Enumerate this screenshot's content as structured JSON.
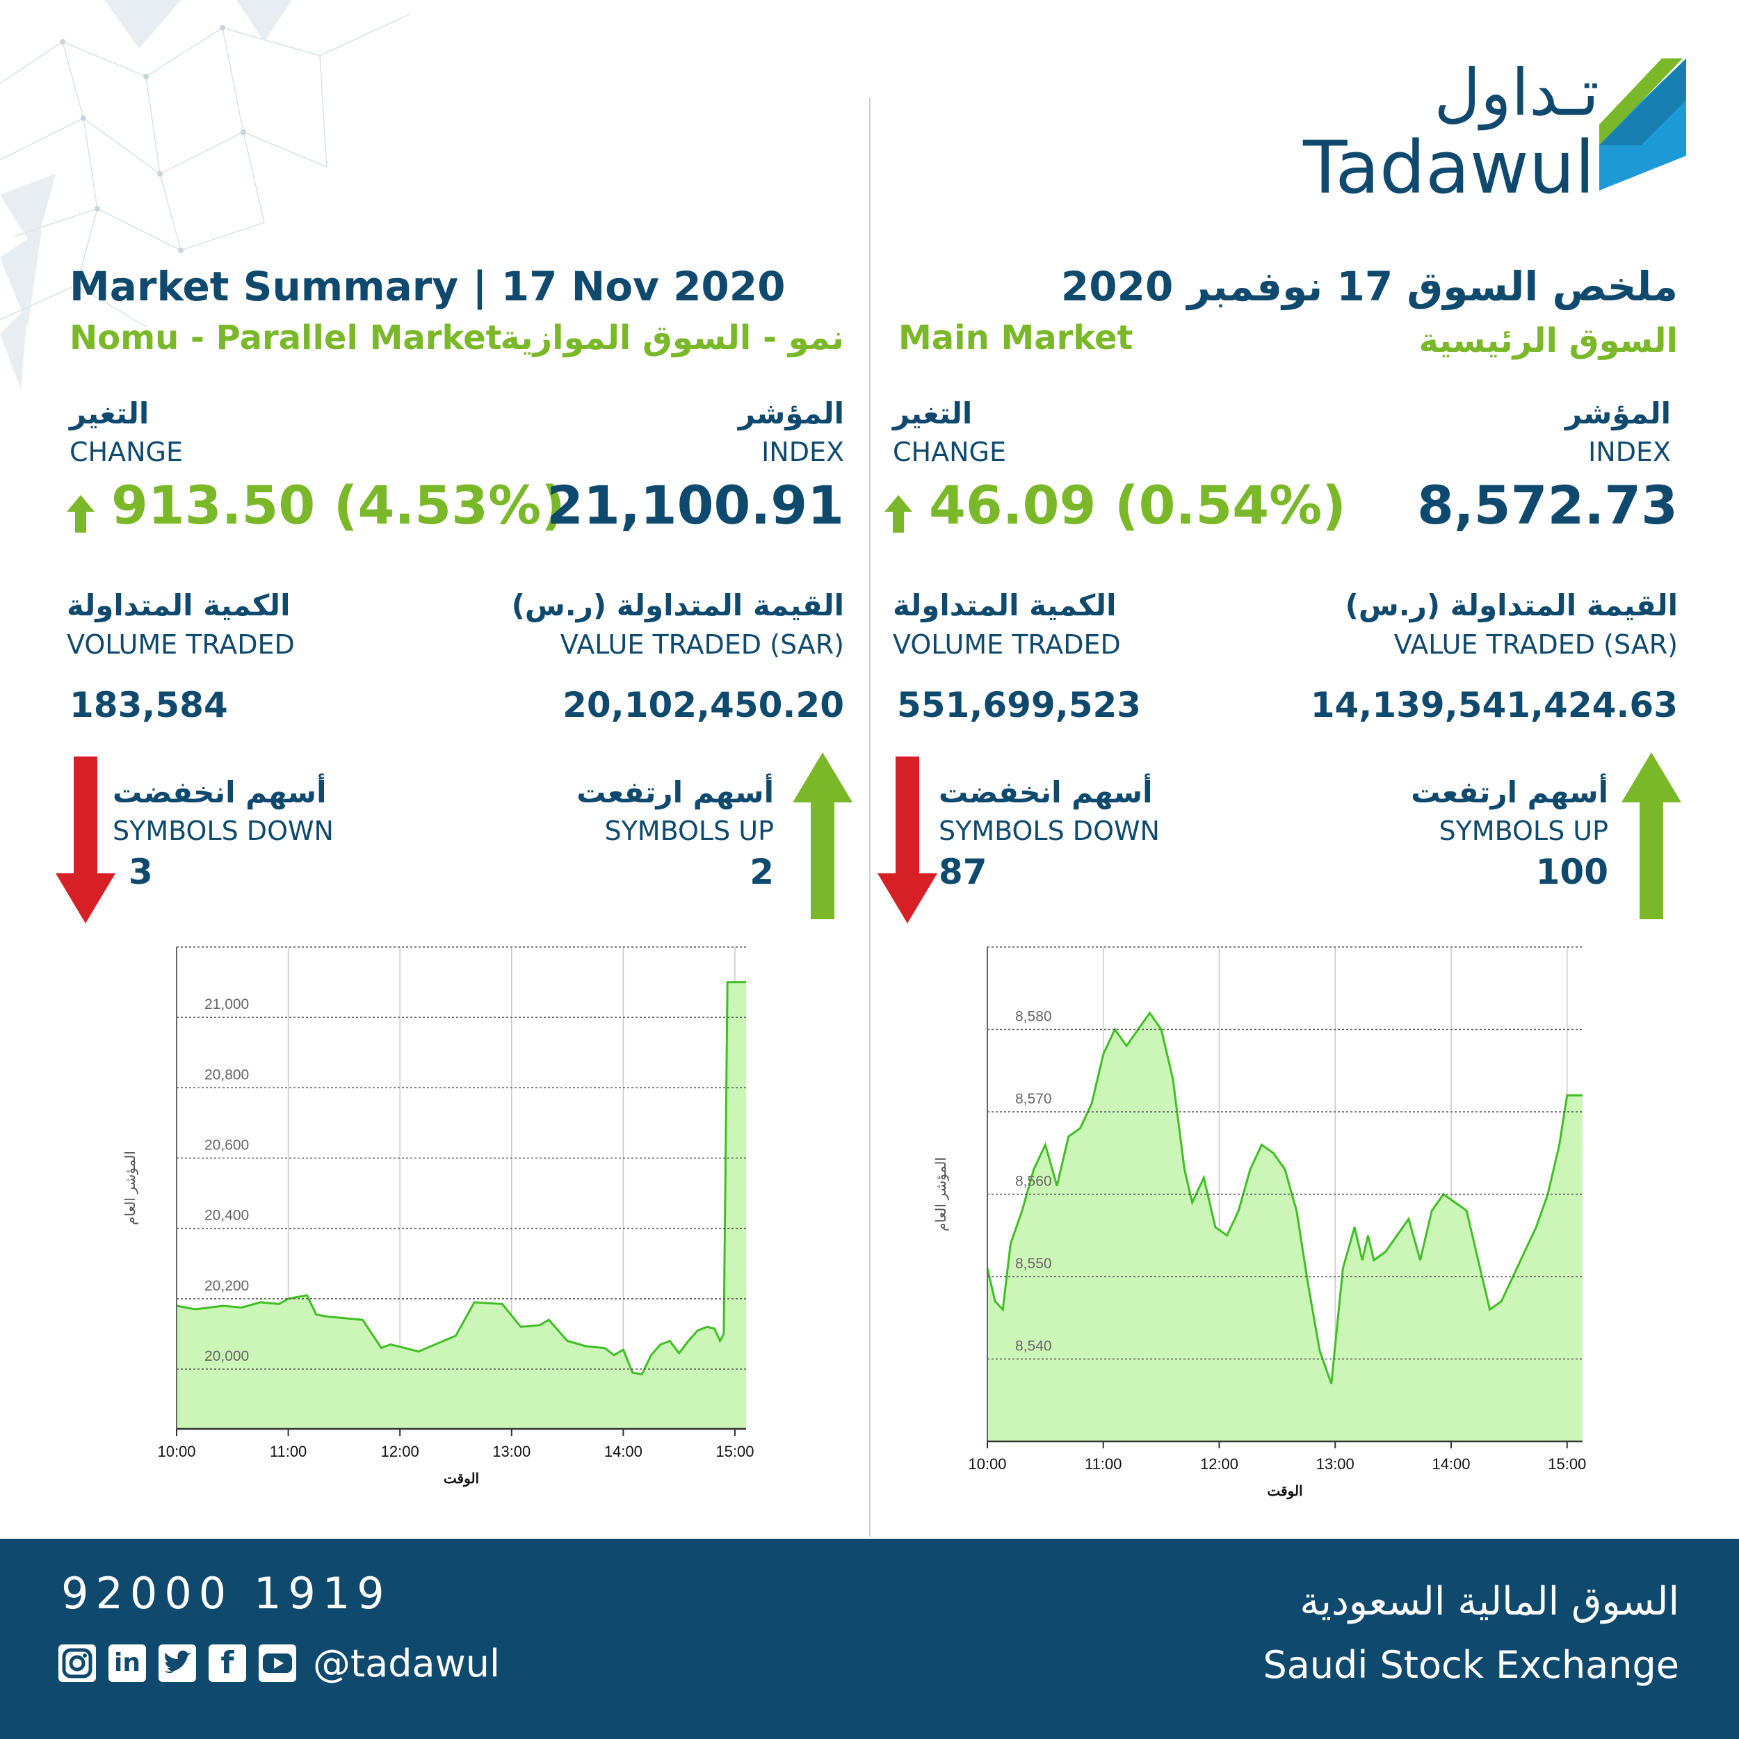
{
  "brand": {
    "logo_ar": "تـداول",
    "logo_en": "Tadawul"
  },
  "header": {
    "title_en": "Market Summary | 17 Nov 2020",
    "title_ar": "ملخص السوق 17 نوفمبر 2020"
  },
  "nomu": {
    "name_en": "Nomu - Parallel Market",
    "name_ar": "نمو - السوق الموازية",
    "index_label_ar": "المؤشر",
    "index_label_en": "INDEX",
    "index_value": "21,100.91",
    "change_label_ar": "التغير",
    "change_label_en": "CHANGE",
    "change_value": "913.50 (4.53%)",
    "value_label_ar": "القيمة المتداولة (ر.س)",
    "value_label_en": "VALUE TRADED (SAR)",
    "value_traded": "20,102,450.20",
    "volume_label_ar": "الكمية المتداولة",
    "volume_label_en": "VOLUME TRADED",
    "volume_traded": "183,584",
    "up_label_ar": "أسهم ارتفعت",
    "up_label_en": "SYMBOLS UP",
    "symbols_up": "2",
    "down_label_ar": "أسهم انخفضت",
    "down_label_en": "SYMBOLS DOWN",
    "symbols_down": "3"
  },
  "main": {
    "name_en": "Main Market",
    "name_ar": "السوق الرئيسية",
    "index_label_ar": "المؤشر",
    "index_label_en": "INDEX",
    "index_value": "8,572.73",
    "change_label_ar": "التغير",
    "change_label_en": "CHANGE",
    "change_value": "46.09 (0.54%)",
    "value_label_ar": "القيمة المتداولة (ر.س)",
    "value_label_en": "VALUE TRADED (SAR)",
    "value_traded": "14,139,541,424.63",
    "volume_label_ar": "الكمية المتداولة",
    "volume_label_en": "VOLUME TRADED",
    "volume_traded": "551,699,523",
    "up_label_ar": "أسهم ارتفعت",
    "up_label_en": "SYMBOLS UP",
    "symbols_up": "100",
    "down_label_ar": "أسهم انخفضت",
    "down_label_en": "SYMBOLS DOWN",
    "symbols_down": "87"
  },
  "footer": {
    "phone": "92000 1919",
    "handle": "@tadawul",
    "exchange_ar": "السوق المالية السعودية",
    "exchange_en": "Saudi Stock Exchange",
    "social_icons": [
      "instagram-icon",
      "linkedin-icon",
      "twitter-icon",
      "facebook-icon",
      "youtube-icon"
    ]
  },
  "colors": {
    "navy": "#0f4a6e",
    "green": "#7ab829",
    "red": "#d71f26",
    "chart_line": "#3fbf22",
    "chart_fill": "#ccf5b8"
  },
  "chart_data": [
    {
      "type": "area",
      "market": "Nomu",
      "xlabel": "الوقت",
      "ylabel": "المؤشر العام",
      "x_ticks": [
        "10:00",
        "11:00",
        "12:00",
        "13:00",
        "14:00",
        "15:00"
      ],
      "y_ticks": [
        "20,000",
        "20,200",
        "20,400",
        "20,600",
        "20,800",
        "21,000"
      ],
      "y_tick_values": [
        20000,
        20200,
        20400,
        20600,
        20800,
        21000
      ],
      "xlim": [
        0,
        306
      ],
      "ylim": [
        19830,
        21200
      ],
      "x": [
        0,
        10,
        25,
        35,
        45,
        55,
        60,
        70,
        75,
        80,
        90,
        100,
        110,
        115,
        130,
        150,
        160,
        175,
        185,
        195,
        200,
        210,
        220,
        230,
        235,
        240,
        245,
        250,
        255,
        260,
        265,
        270,
        275,
        280,
        285,
        289,
        292,
        294,
        296,
        300,
        306
      ],
      "y": [
        20180,
        20170,
        20180,
        20175,
        20190,
        20185,
        20200,
        20210,
        20155,
        20150,
        20145,
        20140,
        20060,
        20070,
        20050,
        20095,
        20190,
        20185,
        20120,
        20125,
        20140,
        20080,
        20065,
        20060,
        20040,
        20055,
        19990,
        19985,
        20040,
        20070,
        20080,
        20045,
        20080,
        20110,
        20120,
        20115,
        20080,
        20100,
        21100,
        21100,
        21100
      ]
    },
    {
      "type": "area",
      "market": "Main",
      "xlabel": "الوقت",
      "ylabel": "المؤشر العام",
      "x_ticks": [
        "10:00",
        "11:00",
        "12:00",
        "13:00",
        "14:00",
        "15:00"
      ],
      "y_ticks": [
        "8,540",
        "8,550",
        "8,560",
        "8,570",
        "8,580"
      ],
      "y_tick_values": [
        8540,
        8550,
        8560,
        8570,
        8580
      ],
      "xlim": [
        0,
        308
      ],
      "ylim": [
        8530,
        8590
      ],
      "x": [
        0,
        4,
        8,
        12,
        18,
        24,
        30,
        36,
        42,
        48,
        54,
        60,
        66,
        72,
        78,
        84,
        90,
        96,
        102,
        106,
        112,
        118,
        124,
        130,
        136,
        142,
        148,
        154,
        160,
        166,
        172,
        178,
        184,
        190,
        194,
        197,
        200,
        206,
        212,
        218,
        224,
        230,
        236,
        242,
        248,
        254,
        260,
        266,
        272,
        278,
        284,
        290,
        296,
        300,
        304,
        308
      ],
      "y": [
        8551,
        8547,
        8546,
        8554,
        8558,
        8563,
        8566,
        8561,
        8567,
        8568,
        8571,
        8577,
        8580,
        8578,
        8580,
        8582,
        8580,
        8574,
        8563,
        8559,
        8562,
        8556,
        8555,
        8558,
        8563,
        8566,
        8565,
        8563,
        8558,
        8549,
        8541,
        8537,
        8551,
        8556,
        8552,
        8555,
        8552,
        8553,
        8555,
        8557,
        8552,
        8558,
        8560,
        8559,
        8558,
        8552,
        8546,
        8547,
        8550,
        8553,
        8556,
        8560,
        8566,
        8572,
        8572,
        8572
      ]
    }
  ]
}
